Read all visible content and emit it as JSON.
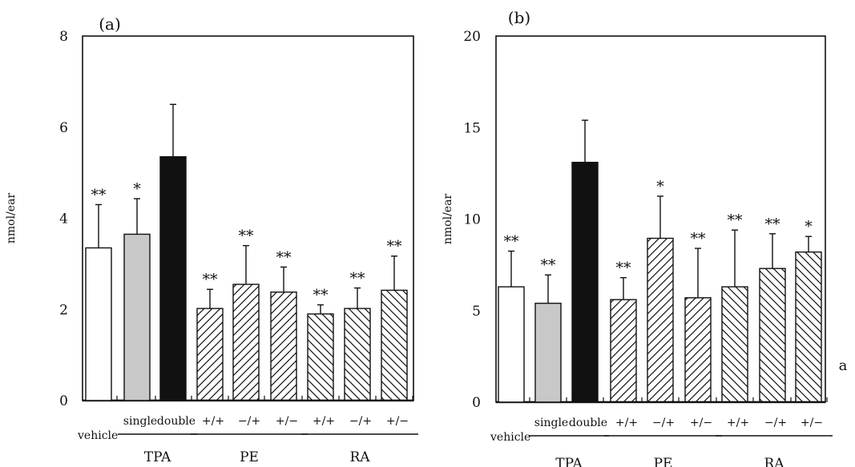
{
  "chart_data": [
    {
      "type": "bar",
      "panel_label": "(a)",
      "ylabel": "nmol/ear",
      "ylim": [
        0,
        8
      ],
      "yticks": [
        0,
        2,
        4,
        6,
        8
      ],
      "categories": [
        "vehicle",
        "single",
        "double",
        "+/+",
        "−/+",
        "+/−",
        "+/+",
        "−/+",
        "+/−"
      ],
      "category_labels": [
        "",
        "single",
        "double",
        "+/+",
        "−/+",
        "+/−",
        "+/+",
        "−/+",
        "+/−"
      ],
      "values": [
        3.35,
        3.65,
        5.35,
        2.02,
        2.55,
        2.38,
        1.9,
        2.02,
        2.42
      ],
      "errors": [
        0.95,
        0.78,
        1.15,
        0.42,
        0.85,
        0.55,
        0.2,
        0.45,
        0.75
      ],
      "significance": [
        "**",
        "*",
        "",
        "**",
        "**",
        "**",
        "**",
        "**",
        "**"
      ],
      "fills": [
        "white",
        "gray",
        "black",
        "hatch-fwd",
        "hatch-fwd",
        "hatch-fwd",
        "hatch-back",
        "hatch-back",
        "hatch-back"
      ],
      "x_labels": {
        "vehicle": "vehicle",
        "groups": [
          {
            "label": "TPA",
            "from": 1,
            "to": 2
          },
          {
            "label": "PE",
            "from": 3,
            "to": 5
          },
          {
            "label": "RA",
            "from": 6,
            "to": 8
          }
        ]
      }
    },
    {
      "type": "bar",
      "panel_label": "(b)",
      "ylabel": "nmol/ear",
      "ylim": [
        0,
        20
      ],
      "yticks": [
        0,
        5,
        10,
        15,
        20
      ],
      "categories": [
        "vehicle",
        "single",
        "double",
        "+/+",
        "−/+",
        "+/−",
        "+/+",
        "−/+",
        "+/−"
      ],
      "category_labels": [
        "",
        "single",
        "double",
        "+/+",
        "−/+",
        "+/−",
        "+/+",
        "−/+",
        "+/−"
      ],
      "values": [
        6.3,
        5.4,
        13.1,
        5.6,
        8.95,
        5.7,
        6.3,
        7.3,
        8.2
      ],
      "errors": [
        1.95,
        1.55,
        2.3,
        1.2,
        2.3,
        2.7,
        3.1,
        1.9,
        0.85
      ],
      "significance": [
        "**",
        "**",
        "",
        "**",
        "*",
        "**",
        "**",
        "**",
        "*"
      ],
      "fills": [
        "white",
        "gray",
        "black",
        "hatch-fwd",
        "hatch-fwd",
        "hatch-fwd",
        "hatch-back",
        "hatch-back",
        "hatch-back"
      ],
      "x_labels": {
        "vehicle": "vehicle",
        "groups": [
          {
            "label": "TPA",
            "from": 1,
            "to": 2
          },
          {
            "label": "PE",
            "from": 3,
            "to": 5
          },
          {
            "label": "RA",
            "from": 6,
            "to": 8
          }
        ]
      }
    }
  ],
  "margin_note": "a"
}
